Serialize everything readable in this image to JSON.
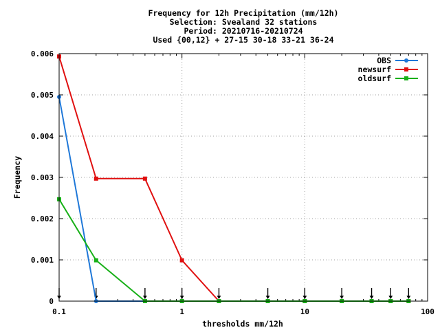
{
  "chart_data": {
    "type": "line",
    "title_lines": [
      "Frequency  for 12h Precipitation (mm/12h)",
      "Selection: Svealand     32 stations",
      "Period: 20210716-20210724",
      "Used {00,12} + 27-15 30-18 33-21 36-24"
    ],
    "xlabel": "thresholds mm/12h",
    "ylabel": "Frequency",
    "xscale": "log",
    "xlim": [
      0.1,
      100
    ],
    "ylim": [
      0,
      0.006
    ],
    "grid": true,
    "legend_position": "top-right",
    "x_tick_values": [
      0.1,
      1,
      10,
      100
    ],
    "x_tick_labels": [
      "0.1",
      "1",
      "10",
      "100"
    ],
    "y_tick_values": [
      0,
      0.001,
      0.002,
      0.003,
      0.004,
      0.005,
      0.006
    ],
    "y_tick_labels": [
      "0",
      "0.001",
      "0.002",
      "0.003",
      "0.004",
      "0.005",
      "0.006"
    ],
    "x": [
      0.1,
      0.2,
      0.5,
      1,
      2,
      5,
      10,
      20,
      35,
      50,
      70
    ],
    "series": [
      {
        "name": "OBS",
        "color": "#1f78d8",
        "marker": "circle",
        "values": [
          0.00495,
          0,
          0,
          0,
          0,
          0,
          0,
          0,
          0,
          0,
          0
        ]
      },
      {
        "name": "newsurf",
        "color": "#e01010",
        "marker": "square",
        "values": [
          0.00593,
          0.00297,
          0.00297,
          0.00099,
          0,
          0,
          0,
          0,
          0,
          0,
          0
        ]
      },
      {
        "name": "oldsurf",
        "color": "#18b018",
        "marker": "square",
        "values": [
          0.00247,
          0.00099,
          0,
          0,
          0,
          0,
          0,
          0,
          0,
          0,
          0
        ]
      }
    ],
    "threshold_markers": [
      0.1,
      0.2,
      0.5,
      1,
      2,
      5,
      10,
      20,
      35,
      50,
      70
    ]
  }
}
